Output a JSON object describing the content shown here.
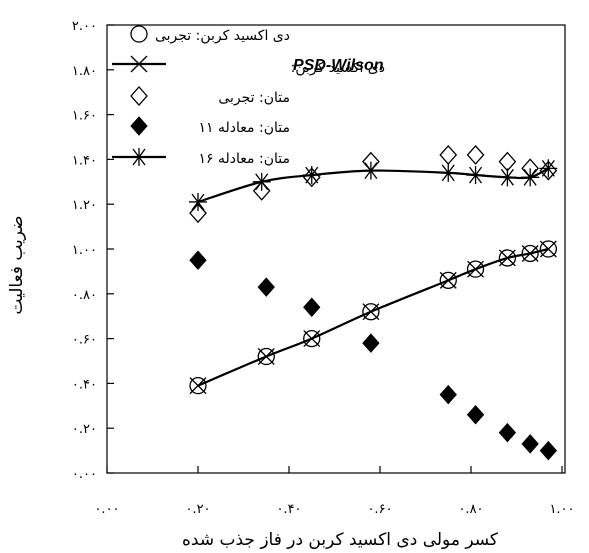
{
  "chart_data": {
    "type": "scatter",
    "xlabel": "کسر مولی دی اکسید کربن در فاز جذب شده",
    "ylabel": "ضریب فعالیت",
    "xlim": [
      0.0,
      1.0
    ],
    "ylim": [
      0.0,
      2.0
    ],
    "x_ticks": [
      0.0,
      0.2,
      0.4,
      0.6,
      0.8,
      1.0
    ],
    "x_tick_labels": [
      "۰.۰۰",
      "۰.۲۰",
      "۰.۴۰",
      "۰.۶۰",
      "۰.۸۰",
      "۱.۰۰"
    ],
    "y_ticks": [
      0.0,
      0.2,
      0.4,
      0.6,
      0.8,
      1.0,
      1.2,
      1.4,
      1.6,
      1.8,
      2.0
    ],
    "y_tick_labels": [
      "۰.۰۰",
      "۰.۲۰",
      "۰.۴۰",
      "۰.۶۰",
      "۰.۸۰",
      "۱.۰۰",
      "۱.۲۰",
      "۱.۴۰",
      "۱.۶۰",
      "۱.۸۰",
      "۲.۰۰"
    ],
    "grid": false,
    "legend_position": "top-left",
    "series": [
      {
        "name": "دی اکسید کربن: تجربی",
        "marker": "circle",
        "x": [
          0.2,
          0.35,
          0.45,
          0.58,
          0.75,
          0.81,
          0.88,
          0.93,
          0.97
        ],
        "y": [
          0.39,
          0.52,
          0.6,
          0.72,
          0.86,
          0.91,
          0.96,
          0.98,
          1.0
        ]
      },
      {
        "name_prefix": "دی اکسید کربن:",
        "name_emphasis": "PSD-Wilson",
        "marker": "x",
        "line": true,
        "x": [
          0.2,
          0.35,
          0.45,
          0.58,
          0.75,
          0.81,
          0.88,
          0.93,
          0.97
        ],
        "y": [
          0.39,
          0.52,
          0.6,
          0.72,
          0.86,
          0.91,
          0.96,
          0.98,
          1.0
        ]
      },
      {
        "name": "متان: تجربی",
        "marker": "diamond-open",
        "x": [
          0.2,
          0.34,
          0.45,
          0.58,
          0.75,
          0.81,
          0.88,
          0.93,
          0.97
        ],
        "y": [
          1.16,
          1.26,
          1.32,
          1.39,
          1.42,
          1.42,
          1.39,
          1.36,
          1.35
        ]
      },
      {
        "name": "متان: معادله ۱۱",
        "marker": "diamond-filled",
        "x": [
          0.2,
          0.35,
          0.45,
          0.58,
          0.75,
          0.81,
          0.88,
          0.93,
          0.97
        ],
        "y": [
          0.95,
          0.83,
          0.74,
          0.58,
          0.35,
          0.26,
          0.18,
          0.13,
          0.1
        ]
      },
      {
        "name": "متان: معادله ۱۶",
        "marker": "asterisk",
        "line": true,
        "x": [
          0.2,
          0.34,
          0.45,
          0.58,
          0.75,
          0.81,
          0.88,
          0.93,
          0.97
        ],
        "y": [
          1.21,
          1.3,
          1.33,
          1.35,
          1.34,
          1.33,
          1.32,
          1.32,
          1.36
        ]
      }
    ]
  },
  "colors": {
    "ink": "#000000",
    "background": "#ffffff"
  }
}
